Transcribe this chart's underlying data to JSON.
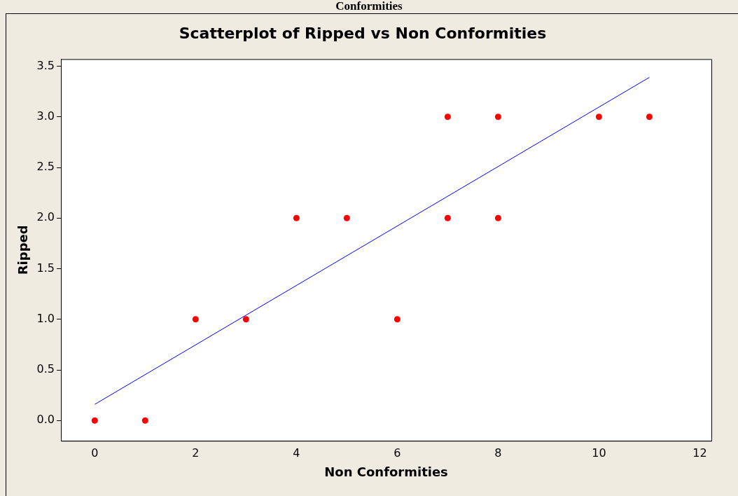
{
  "chart_data": {
    "type": "scatter",
    "title": "Scatterplot of Ripped vs Non Conformities",
    "xlabel": "Non Conformities",
    "ylabel": "Ripped",
    "annotations": [
      "Conformities"
    ],
    "xlim": [
      -0.67,
      12.23
    ],
    "ylim": [
      -0.2,
      3.57
    ],
    "xticks": [
      0,
      2,
      4,
      6,
      8,
      10,
      12
    ],
    "yticks": [
      {
        "value": 0,
        "label": "0.0"
      },
      {
        "value": 0.5,
        "label": "0.5"
      },
      {
        "value": 1,
        "label": "1.0"
      },
      {
        "value": 1.5,
        "label": "1.5"
      },
      {
        "value": 2,
        "label": "2.0"
      },
      {
        "value": 2.5,
        "label": "2.5"
      },
      {
        "value": 3,
        "label": "3.0"
      },
      {
        "value": 3.5,
        "label": "3.5"
      }
    ],
    "grid": false,
    "legend": false,
    "series": [
      {
        "type": "scatter",
        "color": "#ff0000",
        "marker": "circle",
        "x": [
          0,
          1,
          2,
          3,
          4,
          5,
          6,
          7,
          7,
          8,
          8,
          10,
          11
        ],
        "values": [
          0,
          0,
          1,
          1,
          2,
          2,
          1,
          3,
          2,
          3,
          2,
          3,
          3
        ]
      },
      {
        "type": "line",
        "color": "#0000ff",
        "marker": "none",
        "line_style": "solid",
        "x": [
          0,
          11
        ],
        "values": [
          0.16,
          3.39
        ]
      }
    ]
  }
}
